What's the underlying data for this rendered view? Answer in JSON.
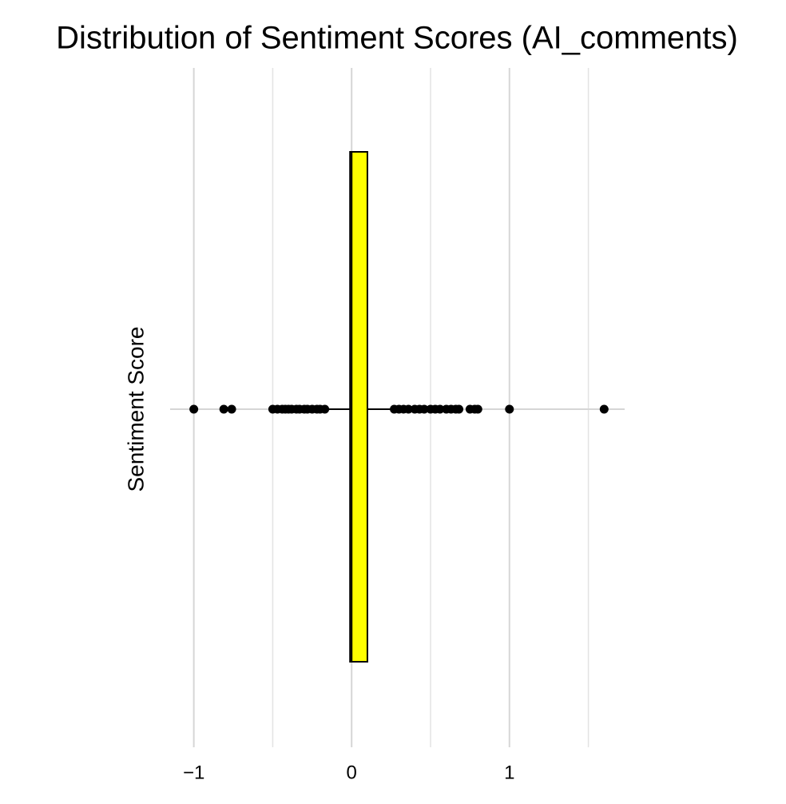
{
  "chart_data": {
    "type": "boxplot",
    "title": "Distribution of Sentiment Scores (AI_comments)",
    "y_label": "Sentiment Score",
    "box": {
      "min": -0.15,
      "q1": -0.01,
      "median": 0,
      "q3": 0.1,
      "max": 0.25
    },
    "outliers": [
      -1,
      -0.81,
      -0.76,
      -0.5,
      -0.47,
      -0.44,
      -0.42,
      -0.4,
      -0.38,
      -0.35,
      -0.33,
      -0.3,
      -0.28,
      -0.25,
      -0.22,
      -0.2,
      -0.17,
      0.27,
      0.3,
      0.33,
      0.36,
      0.4,
      0.43,
      0.46,
      0.5,
      0.53,
      0.56,
      0.6,
      0.63,
      0.66,
      0.68,
      0.75,
      0.78,
      0.8,
      1,
      1.6
    ],
    "color": "#ffff00",
    "xlim": [
      -1.15,
      1.73
    ],
    "xticks": [
      {
        "value": -1,
        "label": "−1"
      },
      0,
      1
    ],
    "x_minor_grid": [
      -0.5,
      0.5,
      1.5
    ],
    "grid": true
  }
}
